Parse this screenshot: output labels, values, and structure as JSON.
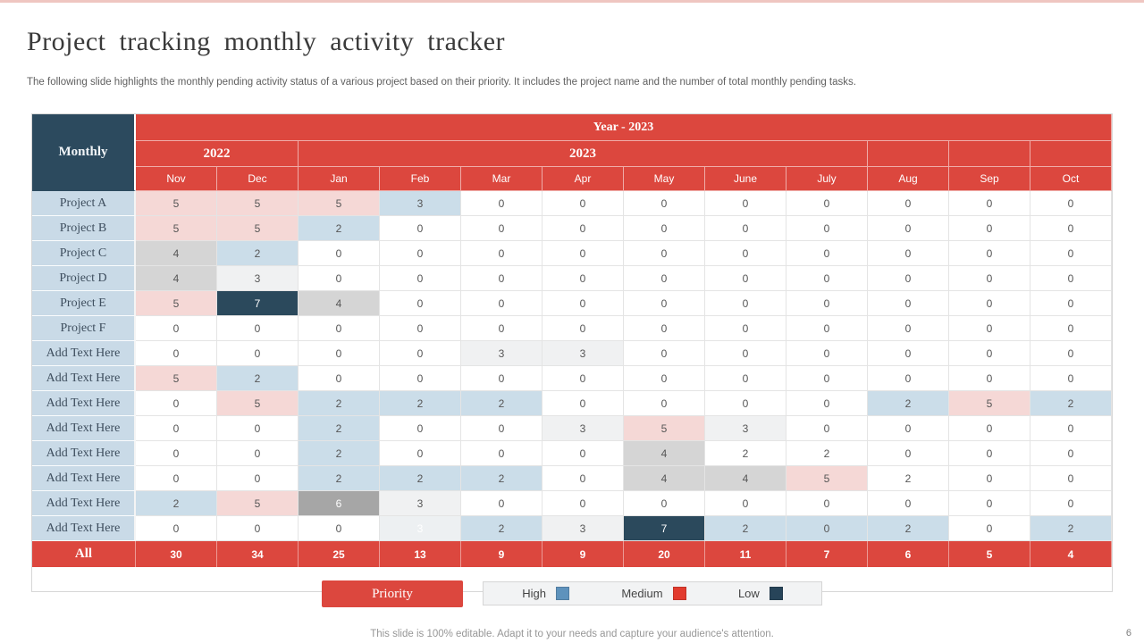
{
  "slide": {
    "title": "Project tracking monthly activity tracker",
    "subtitle": "The following slide highlights the monthly pending activity status of a various project based on their priority. It includes the project name and the number of total monthly pending tasks.",
    "footer_note": "This slide is 100% editable. Adapt it to your needs and capture your audience's attention.",
    "page_number": "6"
  },
  "colors": {
    "accent_red": "#DC473E",
    "navy": "#2C4A5E",
    "label_blue": "#C9DAE7",
    "cell_blue": "#CBDDE9",
    "cell_pink": "#F5D8D6",
    "cell_gray": "#D5D5D5",
    "cell_lightgray": "#F0F1F2",
    "cell_midgray": "#A6A6A6",
    "cell_faint": "#EDF0F2"
  },
  "table": {
    "corner_label": "Monthly",
    "year_banner": "Year - 2023",
    "year_groups": [
      {
        "label": "2022",
        "span": 2
      },
      {
        "label": "2023",
        "span": 7
      },
      {
        "label": "",
        "span": 1
      },
      {
        "label": "",
        "span": 1
      },
      {
        "label": "",
        "span": 1
      }
    ],
    "months": [
      "Nov",
      "Dec",
      "Jan",
      "Feb",
      "Mar",
      "Apr",
      "May",
      "June",
      "July",
      "Aug",
      "Sep",
      "Oct"
    ],
    "rows": [
      {
        "label": "Project A",
        "placeholder": false,
        "cells": [
          [
            "5",
            "p"
          ],
          [
            "5",
            "p"
          ],
          [
            "5",
            "p"
          ],
          [
            "3",
            "b"
          ],
          [
            "0",
            "w"
          ],
          [
            "0",
            "w"
          ],
          [
            "0",
            "w"
          ],
          [
            "0",
            "w"
          ],
          [
            "0",
            "w"
          ],
          [
            "0",
            "w"
          ],
          [
            "0",
            "w"
          ],
          [
            "0",
            "w"
          ]
        ]
      },
      {
        "label": "Project B",
        "placeholder": false,
        "cells": [
          [
            "5",
            "p"
          ],
          [
            "5",
            "p"
          ],
          [
            "2",
            "b"
          ],
          [
            "0",
            "w"
          ],
          [
            "0",
            "w"
          ],
          [
            "0",
            "w"
          ],
          [
            "0",
            "w"
          ],
          [
            "0",
            "w"
          ],
          [
            "0",
            "w"
          ],
          [
            "0",
            "w"
          ],
          [
            "0",
            "w"
          ],
          [
            "0",
            "w"
          ]
        ]
      },
      {
        "label": "Project C",
        "placeholder": false,
        "cells": [
          [
            "4",
            "g"
          ],
          [
            "2",
            "b"
          ],
          [
            "0",
            "w"
          ],
          [
            "0",
            "w"
          ],
          [
            "0",
            "w"
          ],
          [
            "0",
            "w"
          ],
          [
            "0",
            "w"
          ],
          [
            "0",
            "w"
          ],
          [
            "0",
            "w"
          ],
          [
            "0",
            "w"
          ],
          [
            "0",
            "w"
          ],
          [
            "0",
            "w"
          ]
        ]
      },
      {
        "label": "Project D",
        "placeholder": false,
        "cells": [
          [
            "4",
            "g"
          ],
          [
            "3",
            "lg"
          ],
          [
            "0",
            "w"
          ],
          [
            "0",
            "w"
          ],
          [
            "0",
            "w"
          ],
          [
            "0",
            "w"
          ],
          [
            "0",
            "w"
          ],
          [
            "0",
            "w"
          ],
          [
            "0",
            "w"
          ],
          [
            "0",
            "w"
          ],
          [
            "0",
            "w"
          ],
          [
            "0",
            "w"
          ]
        ]
      },
      {
        "label": "Project E",
        "placeholder": false,
        "cells": [
          [
            "5",
            "p"
          ],
          [
            "7",
            "n"
          ],
          [
            "4",
            "g"
          ],
          [
            "0",
            "w"
          ],
          [
            "0",
            "w"
          ],
          [
            "0",
            "w"
          ],
          [
            "0",
            "w"
          ],
          [
            "0",
            "w"
          ],
          [
            "0",
            "w"
          ],
          [
            "0",
            "w"
          ],
          [
            "0",
            "w"
          ],
          [
            "0",
            "w"
          ]
        ]
      },
      {
        "label": "Project F",
        "placeholder": false,
        "cells": [
          [
            "0",
            "w"
          ],
          [
            "0",
            "w"
          ],
          [
            "0",
            "w"
          ],
          [
            "0",
            "w"
          ],
          [
            "0",
            "w"
          ],
          [
            "0",
            "w"
          ],
          [
            "0",
            "w"
          ],
          [
            "0",
            "w"
          ],
          [
            "0",
            "w"
          ],
          [
            "0",
            "w"
          ],
          [
            "0",
            "w"
          ],
          [
            "0",
            "w"
          ]
        ]
      },
      {
        "label": "Add Text Here",
        "placeholder": true,
        "cells": [
          [
            "0",
            "w"
          ],
          [
            "0",
            "w"
          ],
          [
            "0",
            "w"
          ],
          [
            "0",
            "w"
          ],
          [
            "3",
            "lg"
          ],
          [
            "3",
            "lg"
          ],
          [
            "0",
            "w"
          ],
          [
            "0",
            "w"
          ],
          [
            "0",
            "w"
          ],
          [
            "0",
            "w"
          ],
          [
            "0",
            "w"
          ],
          [
            "0",
            "w"
          ]
        ]
      },
      {
        "label": "Add Text Here",
        "placeholder": true,
        "cells": [
          [
            "5",
            "p"
          ],
          [
            "2",
            "b"
          ],
          [
            "0",
            "w"
          ],
          [
            "0",
            "w"
          ],
          [
            "0",
            "w"
          ],
          [
            "0",
            "w"
          ],
          [
            "0",
            "w"
          ],
          [
            "0",
            "w"
          ],
          [
            "0",
            "w"
          ],
          [
            "0",
            "w"
          ],
          [
            "0",
            "w"
          ],
          [
            "0",
            "w"
          ]
        ]
      },
      {
        "label": "Add Text Here",
        "placeholder": true,
        "cells": [
          [
            "0",
            "w"
          ],
          [
            "5",
            "p"
          ],
          [
            "2",
            "b"
          ],
          [
            "2",
            "b"
          ],
          [
            "2",
            "b"
          ],
          [
            "0",
            "w"
          ],
          [
            "0",
            "w"
          ],
          [
            "0",
            "w"
          ],
          [
            "0",
            "w"
          ],
          [
            "2",
            "b"
          ],
          [
            "5",
            "p"
          ],
          [
            "2",
            "b"
          ]
        ]
      },
      {
        "label": "Add Text Here",
        "placeholder": true,
        "cells": [
          [
            "0",
            "w"
          ],
          [
            "0",
            "w"
          ],
          [
            "2",
            "b"
          ],
          [
            "0",
            "w"
          ],
          [
            "0",
            "w"
          ],
          [
            "3",
            "lg"
          ],
          [
            "5",
            "p"
          ],
          [
            "3",
            "lg"
          ],
          [
            "0",
            "w"
          ],
          [
            "0",
            "w"
          ],
          [
            "0",
            "w"
          ],
          [
            "0",
            "w"
          ]
        ]
      },
      {
        "label": "Add Text Here",
        "placeholder": true,
        "cells": [
          [
            "0",
            "w"
          ],
          [
            "0",
            "w"
          ],
          [
            "2",
            "b"
          ],
          [
            "0",
            "w"
          ],
          [
            "0",
            "w"
          ],
          [
            "0",
            "w"
          ],
          [
            "4",
            "g"
          ],
          [
            "2",
            "w"
          ],
          [
            "2",
            "w"
          ],
          [
            "0",
            "w"
          ],
          [
            "0",
            "w"
          ],
          [
            "0",
            "w"
          ]
        ]
      },
      {
        "label": "Add Text Here",
        "placeholder": true,
        "cells": [
          [
            "0",
            "w"
          ],
          [
            "0",
            "w"
          ],
          [
            "2",
            "b"
          ],
          [
            "2",
            "b"
          ],
          [
            "2",
            "b"
          ],
          [
            "0",
            "w"
          ],
          [
            "4",
            "g"
          ],
          [
            "4",
            "g"
          ],
          [
            "5",
            "p"
          ],
          [
            "2",
            "w"
          ],
          [
            "0",
            "w"
          ],
          [
            "0",
            "w"
          ]
        ]
      },
      {
        "label": "Add Text Here",
        "placeholder": true,
        "cells": [
          [
            "2",
            "b"
          ],
          [
            "5",
            "p"
          ],
          [
            "6",
            "mg"
          ],
          [
            "3",
            "lg"
          ],
          [
            "0",
            "w"
          ],
          [
            "0",
            "w"
          ],
          [
            "0",
            "w"
          ],
          [
            "0",
            "w"
          ],
          [
            "0",
            "w"
          ],
          [
            "0",
            "w"
          ],
          [
            "0",
            "w"
          ],
          [
            "0",
            "w"
          ]
        ]
      },
      {
        "label": "Add Text Here",
        "placeholder": true,
        "cells": [
          [
            "0",
            "w"
          ],
          [
            "0",
            "w"
          ],
          [
            "0",
            "w"
          ],
          [
            "3",
            "vl"
          ],
          [
            "2",
            "b"
          ],
          [
            "3",
            "lg"
          ],
          [
            "7",
            "n"
          ],
          [
            "2",
            "b"
          ],
          [
            "0",
            "b"
          ],
          [
            "2",
            "b"
          ],
          [
            "0",
            "w"
          ],
          [
            "2",
            "b"
          ]
        ]
      }
    ],
    "total": {
      "label": "All",
      "values": [
        "30",
        "34",
        "25",
        "13",
        "9",
        "9",
        "20",
        "11",
        "7",
        "6",
        "5",
        "4"
      ]
    }
  },
  "legend": {
    "button_label": "Priority",
    "items": [
      {
        "label": "High",
        "color": "#5E92BC"
      },
      {
        "label": "Medium",
        "color": "#E23B2E"
      },
      {
        "label": "Low",
        "color": "#274459"
      }
    ]
  }
}
